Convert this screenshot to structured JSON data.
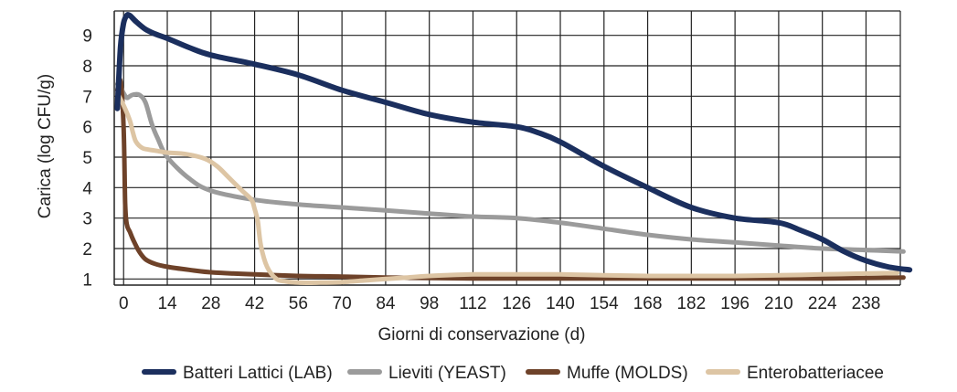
{
  "chart_data": {
    "type": "line",
    "title": "",
    "xlabel": "Giorni di conservazione (d)",
    "ylabel": "Carica (log CFU/g)",
    "xlim": [
      -3,
      249
    ],
    "ylim": [
      0.8,
      9.8
    ],
    "grid": true,
    "legend_position": "bottom",
    "x_ticks": [
      0,
      14,
      28,
      42,
      56,
      70,
      84,
      98,
      112,
      126,
      140,
      154,
      168,
      182,
      196,
      210,
      224,
      238
    ],
    "y_ticks": [
      1,
      2,
      3,
      4,
      5,
      6,
      7,
      8,
      9
    ],
    "series": [
      {
        "name": "Batteri Lattici (LAB)",
        "color": "#1b2f5e",
        "x": [
          -2,
          -1,
          0,
          1,
          2,
          4,
          7,
          10,
          14,
          21,
          28,
          42,
          56,
          70,
          84,
          98,
          112,
          126,
          133,
          140,
          154,
          168,
          182,
          196,
          210,
          217,
          224,
          231,
          238,
          245,
          252
        ],
        "y": [
          6.6,
          8.6,
          9.4,
          9.65,
          9.65,
          9.45,
          9.2,
          9.05,
          8.9,
          8.6,
          8.35,
          8.05,
          7.7,
          7.2,
          6.8,
          6.4,
          6.15,
          6.0,
          5.8,
          5.5,
          4.7,
          4.0,
          3.35,
          3.0,
          2.85,
          2.6,
          2.3,
          1.9,
          1.6,
          1.4,
          1.3
        ]
      },
      {
        "name": "Lieviti (YEAST)",
        "color": "#9b9b9b",
        "x": [
          -2,
          -1,
          0,
          1,
          2,
          3,
          5,
          7,
          9,
          11,
          14,
          21,
          28,
          42,
          56,
          70,
          84,
          98,
          112,
          126,
          140,
          154,
          168,
          182,
          196,
          210,
          224,
          238,
          250
        ],
        "y": [
          7.4,
          7.3,
          7.1,
          6.95,
          7.0,
          7.05,
          7.05,
          6.8,
          6.1,
          5.6,
          5.0,
          4.3,
          3.9,
          3.6,
          3.45,
          3.35,
          3.25,
          3.15,
          3.05,
          3.0,
          2.85,
          2.65,
          2.45,
          2.3,
          2.2,
          2.1,
          2.0,
          1.95,
          1.9
        ]
      },
      {
        "name": "Muffe (MOLDS)",
        "color": "#6e4229",
        "x": [
          -2,
          -1,
          0,
          0.5,
          1,
          2,
          3,
          5,
          7,
          10,
          14,
          21,
          28,
          42,
          56,
          70,
          84,
          98,
          112,
          126,
          140,
          154,
          168,
          182,
          196,
          210,
          224,
          238,
          250
        ],
        "y": [
          7.2,
          7.5,
          6.0,
          3.5,
          2.8,
          2.55,
          2.3,
          1.9,
          1.65,
          1.5,
          1.4,
          1.3,
          1.22,
          1.15,
          1.1,
          1.08,
          1.05,
          1.03,
          1.02,
          1.02,
          1.02,
          1.02,
          1.02,
          1.02,
          1.02,
          1.02,
          1.02,
          1.03,
          1.05
        ]
      },
      {
        "name": "Enterobatteriacee",
        "color": "#ddc5a4",
        "x": [
          -2,
          0,
          2,
          3,
          4,
          6,
          8,
          11,
          14,
          20,
          26,
          30,
          34,
          38,
          41,
          42,
          43,
          44,
          46,
          49,
          52,
          56,
          63,
          70,
          77,
          84,
          91,
          98,
          112,
          126,
          140,
          154,
          168,
          182,
          196,
          210,
          224,
          238,
          248
        ],
        "y": [
          7.1,
          6.7,
          6.2,
          5.8,
          5.5,
          5.3,
          5.25,
          5.2,
          5.15,
          5.1,
          4.95,
          4.7,
          4.3,
          3.9,
          3.6,
          3.3,
          2.9,
          2.1,
          1.4,
          1.0,
          0.92,
          0.88,
          0.88,
          0.9,
          0.95,
          1.0,
          1.05,
          1.1,
          1.15,
          1.15,
          1.15,
          1.12,
          1.1,
          1.1,
          1.1,
          1.12,
          1.15,
          1.18,
          1.2
        ]
      }
    ]
  }
}
